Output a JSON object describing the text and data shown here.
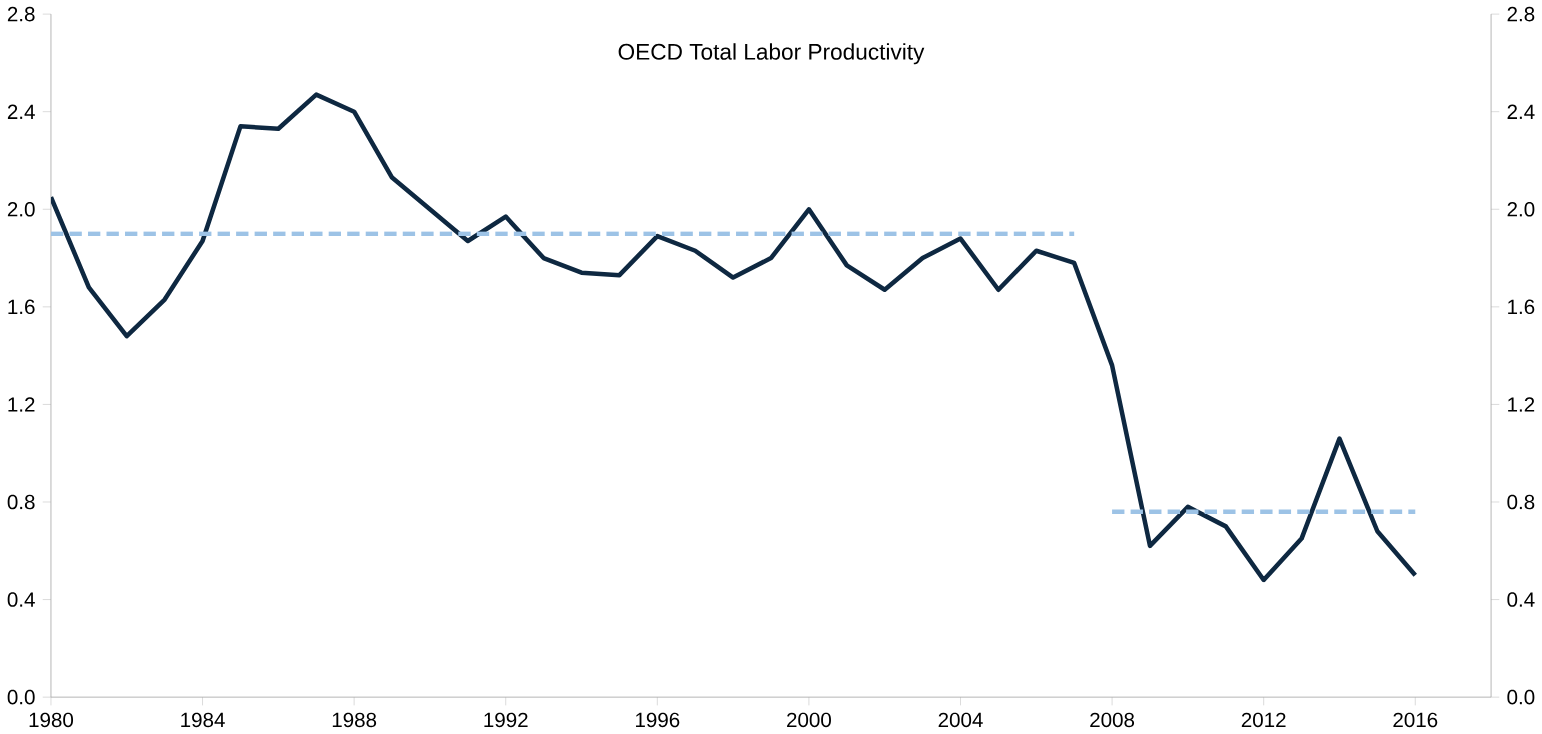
{
  "chart_data": {
    "type": "line",
    "title": "OECD Total Labor Productivity",
    "x": [
      1980,
      1981,
      1982,
      1983,
      1984,
      1985,
      1986,
      1987,
      1988,
      1989,
      1990,
      1991,
      1992,
      1993,
      1994,
      1995,
      1996,
      1997,
      1998,
      1999,
      2000,
      2001,
      2002,
      2003,
      2004,
      2005,
      2006,
      2007,
      2008,
      2009,
      2010,
      2011,
      2012,
      2013,
      2014,
      2015,
      2016
    ],
    "series": [
      {
        "color": "#0e2841",
        "line_style": "solid",
        "values": [
          2.05,
          1.68,
          1.48,
          1.63,
          1.87,
          2.34,
          2.33,
          2.47,
          2.4,
          2.13,
          2.0,
          1.87,
          1.97,
          1.8,
          1.74,
          1.73,
          1.89,
          1.83,
          1.72,
          1.8,
          2.0,
          1.77,
          1.67,
          1.8,
          1.88,
          1.67,
          1.83,
          1.78,
          1.36,
          0.62,
          0.78,
          0.7,
          0.48,
          0.65,
          1.06,
          0.68,
          0.5
        ]
      },
      {
        "type": "line",
        "color": "#9dc3e6",
        "line_style": "dashed",
        "x": [
          1980,
          2007
        ],
        "values": [
          1.9,
          1.9
        ]
      },
      {
        "type": "line",
        "color": "#9dc3e6",
        "line_style": "dashed",
        "x": [
          2008,
          2016
        ],
        "values": [
          0.76,
          0.76
        ]
      }
    ],
    "xlim": [
      1980,
      2018
    ],
    "xticks": [
      1980,
      1984,
      1988,
      1992,
      1996,
      2000,
      2004,
      2008,
      2012,
      2016
    ],
    "ylim": [
      0,
      2.8
    ],
    "yticks": [
      {
        "value": 0,
        "label": "0.0"
      },
      0.4,
      0.8,
      1.2,
      1.6,
      {
        "value": 2,
        "label": "2.0"
      },
      2.4,
      2.8
    ],
    "y2lim": [
      0,
      2.8
    ],
    "y2ticks": [
      {
        "value": 0,
        "label": "0.0"
      },
      0.4,
      0.8,
      1.2,
      1.6,
      {
        "value": 2,
        "label": "2.0"
      },
      2.4,
      2.8
    ],
    "grid": false
  }
}
